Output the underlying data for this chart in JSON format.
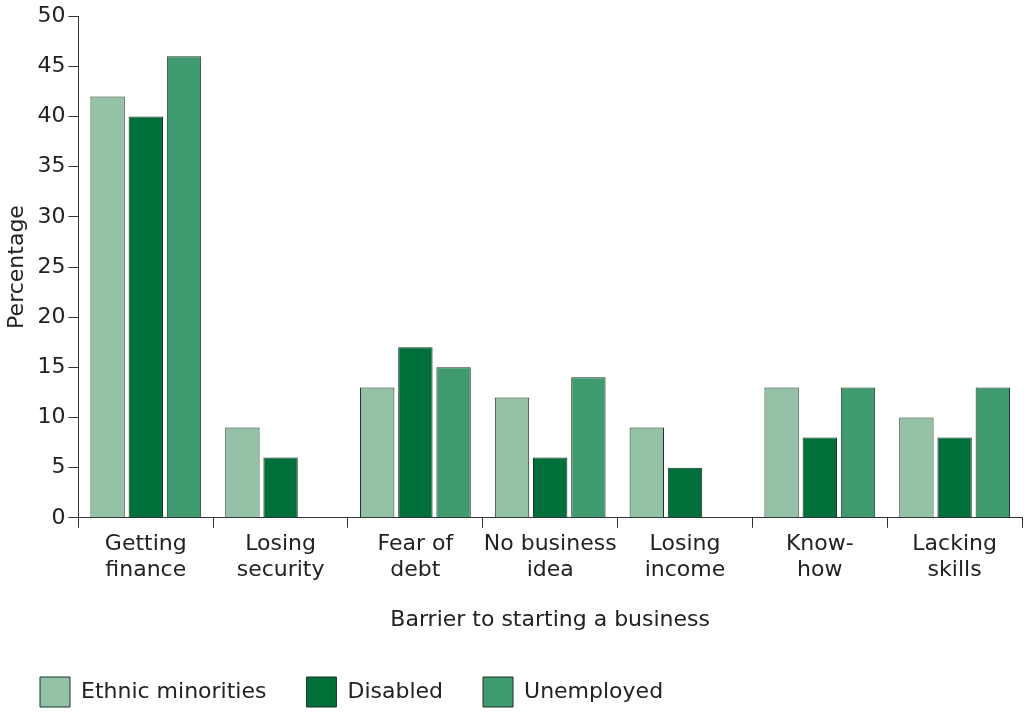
{
  "chart_data": {
    "type": "bar",
    "xlabel": "Barrier to starting a business",
    "ylabel": "Percentage",
    "categories": [
      "Getting finance",
      "Losing security",
      "Fear of debt",
      "No business idea",
      "Losing income",
      "Know-how",
      "Lacking skills"
    ],
    "series": [
      {
        "name": "Ethnic minorities",
        "color": "#93c2a6",
        "values": [
          42,
          9,
          13,
          12,
          9,
          13,
          10
        ]
      },
      {
        "name": "Disabled",
        "color": "#006f3a",
        "values": [
          40,
          6,
          17,
          6,
          5,
          8,
          8
        ]
      },
      {
        "name": "Unemployed",
        "color": "#3f9a6f",
        "values": [
          46,
          0,
          15,
          14,
          0,
          13,
          13
        ]
      }
    ],
    "ylim": [
      0,
      50
    ],
    "yticks": [
      0,
      5,
      10,
      15,
      20,
      25,
      30,
      35,
      40,
      45,
      50
    ],
    "grid": false,
    "legend": "bottom left"
  }
}
